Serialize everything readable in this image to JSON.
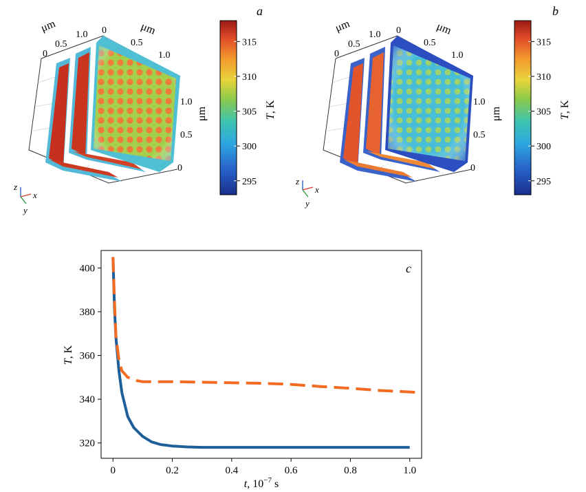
{
  "panels": {
    "a": {
      "label": "a",
      "axis_unit": "μm",
      "tick_x": [
        "0",
        "0.5",
        "1.0"
      ],
      "tick_y": [
        "0",
        "0.5",
        "1.0"
      ],
      "tick_z": [
        "0",
        "0.5",
        "1.0"
      ],
      "colorbar": {
        "label": "T, K",
        "min": 293,
        "max": 318,
        "ticks": [
          295,
          300,
          305,
          310,
          315
        ]
      },
      "triad": {
        "z": "z",
        "x": "x",
        "y": "y"
      }
    },
    "b": {
      "label": "b",
      "axis_unit": "μm",
      "tick_x": [
        "0",
        "0.5",
        "1.0"
      ],
      "tick_y": [
        "0",
        "0.5",
        "1.0"
      ],
      "tick_z": [
        "0",
        "0.5",
        "1.0"
      ],
      "colorbar": {
        "label": "T, K",
        "min": 293,
        "max": 318,
        "ticks": [
          295,
          300,
          305,
          310,
          315
        ]
      },
      "triad": {
        "z": "z",
        "x": "x",
        "y": "y"
      }
    }
  },
  "colors": {
    "series_solid": "#1f5f99",
    "series_dashed": "#f26b21",
    "axis": "#000000"
  },
  "chart_data": {
    "type": "line",
    "label": "c",
    "xlabel_main": "t, 10",
    "xlabel_exp": "−7",
    "xlabel_unit": " s",
    "ylabel": "T, K",
    "xlim": [
      -0.04,
      1.04
    ],
    "ylim": [
      313,
      408
    ],
    "xticks": [
      0,
      0.2,
      0.4,
      0.6,
      0.8,
      1.0
    ],
    "xtick_labels": [
      "0",
      "0.2",
      "0.4",
      "0.6",
      "0.8",
      "1.0"
    ],
    "yticks": [
      320,
      340,
      360,
      380,
      400
    ],
    "ytick_labels": [
      "320",
      "340",
      "360",
      "380",
      "400"
    ],
    "series": [
      {
        "name": "solid",
        "style": "solid",
        "x": [
          0.0,
          0.005,
          0.01,
          0.02,
          0.03,
          0.05,
          0.07,
          0.1,
          0.13,
          0.16,
          0.2,
          0.25,
          0.3,
          0.4,
          0.6,
          0.8,
          1.0
        ],
        "y": [
          405,
          382,
          368,
          353,
          343,
          332,
          327,
          323,
          320.5,
          319.3,
          318.6,
          318.2,
          318.0,
          318.0,
          318.0,
          318.0,
          318.0
        ]
      },
      {
        "name": "dashed",
        "style": "dashed",
        "x": [
          0.0,
          0.005,
          0.01,
          0.02,
          0.03,
          0.05,
          0.08,
          0.1,
          0.15,
          0.2,
          0.3,
          0.4,
          0.5,
          0.6,
          0.7,
          0.8,
          0.9,
          1.02
        ],
        "y": [
          405,
          385,
          369,
          358,
          353,
          350,
          348.5,
          348,
          348,
          348,
          347.8,
          347.5,
          347.3,
          346.8,
          345.8,
          345.0,
          344.0,
          343.2
        ]
      }
    ]
  }
}
